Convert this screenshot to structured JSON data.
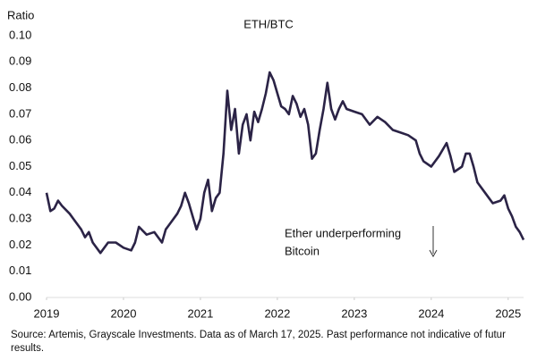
{
  "chart_data": {
    "type": "line",
    "title": "ETH/BTC",
    "y_label": "Ratio",
    "annotation": [
      "Ether underperforming",
      "Bitcoin"
    ],
    "source": "Source: Artemis, Grayscale Investments. Data as of March 17, 2025. Past performance not indicative of futur results.",
    "xlim": [
      2019,
      2025.2
    ],
    "xticks": [
      2019,
      2020,
      2021,
      2022,
      2023,
      2024,
      2025
    ],
    "ylim": [
      0,
      0.1
    ],
    "yticks": [
      {
        "value": 0,
        "label": "0.00"
      },
      {
        "value": 0.01,
        "label": "0.01"
      },
      {
        "value": 0.02,
        "label": "0.02"
      },
      {
        "value": 0.03,
        "label": "0.03"
      },
      {
        "value": 0.04,
        "label": "0.04"
      },
      {
        "value": 0.05,
        "label": "0.05"
      },
      {
        "value": 0.06,
        "label": "0.06"
      },
      {
        "value": 0.07,
        "label": "0.07"
      },
      {
        "value": 0.08,
        "label": "0.08"
      },
      {
        "value": 0.09,
        "label": "0.09"
      },
      {
        "value": 0.1,
        "label": "0.10"
      }
    ],
    "grid": false,
    "series": [
      {
        "name": "ETH/BTC",
        "color": "#2b2346",
        "x": [
          2019.0,
          2019.05,
          2019.1,
          2019.15,
          2019.2,
          2019.3,
          2019.35,
          2019.45,
          2019.5,
          2019.55,
          2019.6,
          2019.7,
          2019.8,
          2019.9,
          2020.0,
          2020.1,
          2020.15,
          2020.2,
          2020.3,
          2020.4,
          2020.5,
          2020.55,
          2020.6,
          2020.7,
          2020.75,
          2020.8,
          2020.85,
          2020.9,
          2020.95,
          2021.0,
          2021.05,
          2021.1,
          2021.15,
          2021.2,
          2021.25,
          2021.3,
          2021.35,
          2021.4,
          2021.45,
          2021.5,
          2021.55,
          2021.6,
          2021.65,
          2021.7,
          2021.75,
          2021.8,
          2021.85,
          2021.9,
          2021.95,
          2022.0,
          2022.05,
          2022.1,
          2022.15,
          2022.2,
          2022.25,
          2022.3,
          2022.35,
          2022.4,
          2022.45,
          2022.5,
          2022.55,
          2022.6,
          2022.65,
          2022.7,
          2022.75,
          2022.8,
          2022.85,
          2022.9,
          2023.0,
          2023.1,
          2023.2,
          2023.3,
          2023.4,
          2023.5,
          2023.6,
          2023.7,
          2023.8,
          2023.85,
          2023.9,
          2024.0,
          2024.1,
          2024.2,
          2024.25,
          2024.3,
          2024.4,
          2024.45,
          2024.5,
          2024.55,
          2024.6,
          2024.7,
          2024.75,
          2024.8,
          2024.9,
          2024.95,
          2025.0,
          2025.05,
          2025.1,
          2025.15,
          2025.2
        ],
        "values": [
          0.04,
          0.033,
          0.034,
          0.037,
          0.035,
          0.032,
          0.03,
          0.026,
          0.023,
          0.025,
          0.021,
          0.017,
          0.021,
          0.021,
          0.019,
          0.018,
          0.021,
          0.027,
          0.024,
          0.025,
          0.021,
          0.026,
          0.028,
          0.032,
          0.035,
          0.04,
          0.036,
          0.031,
          0.026,
          0.03,
          0.04,
          0.045,
          0.033,
          0.038,
          0.04,
          0.055,
          0.079,
          0.064,
          0.072,
          0.055,
          0.066,
          0.07,
          0.06,
          0.071,
          0.067,
          0.072,
          0.078,
          0.086,
          0.083,
          0.078,
          0.073,
          0.072,
          0.07,
          0.077,
          0.074,
          0.069,
          0.072,
          0.066,
          0.053,
          0.055,
          0.064,
          0.072,
          0.082,
          0.072,
          0.068,
          0.072,
          0.075,
          0.072,
          0.071,
          0.07,
          0.066,
          0.069,
          0.067,
          0.064,
          0.063,
          0.062,
          0.06,
          0.055,
          0.052,
          0.05,
          0.054,
          0.059,
          0.054,
          0.048,
          0.05,
          0.055,
          0.055,
          0.05,
          0.044,
          0.04,
          0.038,
          0.036,
          0.037,
          0.039,
          0.034,
          0.031,
          0.027,
          0.025,
          0.022
        ]
      }
    ]
  }
}
